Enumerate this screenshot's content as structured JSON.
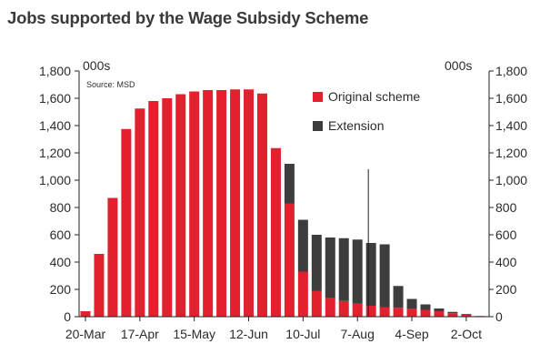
{
  "chart_data": {
    "type": "bar",
    "title": "Jobs supported by the Wage Subsidy Scheme",
    "unit_label_left": "000s",
    "unit_label_right": "000s",
    "source": "Source: MSD",
    "ylim": [
      0,
      1800
    ],
    "yticks": [
      0,
      200,
      400,
      600,
      800,
      1000,
      1200,
      1400,
      1600,
      1800
    ],
    "ytick_labels": [
      "0",
      "200",
      "400",
      "600",
      "800",
      "1,000",
      "1,200",
      "1,400",
      "1,600",
      "1,800"
    ],
    "xtick_labels": [
      "20-Mar",
      "17-Apr",
      "15-May",
      "12-Jun",
      "10-Jul",
      "7-Aug",
      "4-Sep",
      "2-Oct"
    ],
    "xtick_positions": [
      0,
      4,
      8,
      12,
      16,
      20,
      24,
      28
    ],
    "stacked": true,
    "series": [
      {
        "name": "Original scheme",
        "color": "#e3202e",
        "values": [
          40,
          460,
          870,
          1375,
          1525,
          1580,
          1600,
          1630,
          1650,
          1660,
          1660,
          1665,
          1665,
          1635,
          1235,
          830,
          330,
          190,
          140,
          115,
          95,
          80,
          70,
          65,
          60,
          50,
          40,
          25,
          15,
          5
        ]
      },
      {
        "name": "Extension",
        "color": "#3d3d3d",
        "values": [
          0,
          0,
          0,
          0,
          0,
          0,
          0,
          0,
          0,
          0,
          0,
          0,
          0,
          0,
          0,
          290,
          380,
          410,
          440,
          460,
          470,
          460,
          460,
          160,
          70,
          40,
          20,
          10,
          5,
          0
        ]
      }
    ],
    "marker_line_index": 21,
    "marker_line_value": 1080
  }
}
